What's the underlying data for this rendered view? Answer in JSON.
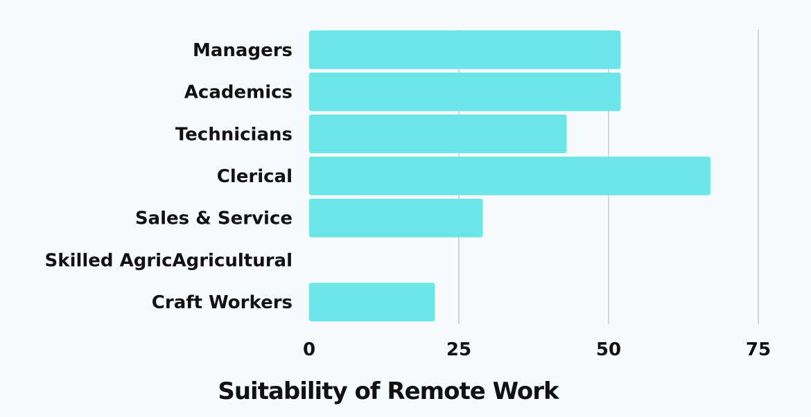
{
  "chart_data": {
    "type": "bar",
    "orientation": "horizontal",
    "categories": [
      "Managers",
      "Academics",
      "Technicians",
      "Clerical",
      "Sales & Service",
      "Skilled AgricAgricultural",
      "Craft Workers"
    ],
    "values": [
      52,
      52,
      43,
      67,
      29,
      0,
      21
    ],
    "xlabel": "Suitability of Remote Work",
    "ylabel": "",
    "xlim": [
      0,
      75
    ],
    "xticks": [
      "0",
      "25",
      "50",
      "75"
    ],
    "grid": "vertical",
    "colors": {
      "bar": "#6ce5e8",
      "grid": "#c7c9cc",
      "text": "#111111",
      "background": "#f7fbff"
    }
  }
}
